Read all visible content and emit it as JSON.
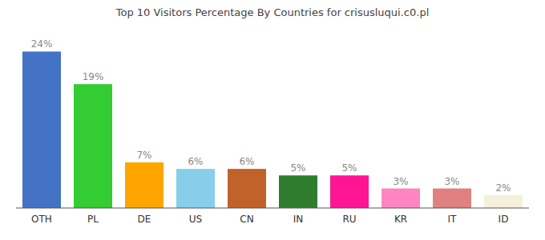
{
  "chart_data": {
    "type": "bar",
    "title": "Top 10 Visitors Percentage By Countries for crisusluqui.c0.pl",
    "categories": [
      "OTH",
      "PL",
      "DE",
      "US",
      "CN",
      "IN",
      "RU",
      "KR",
      "IT",
      "ID"
    ],
    "values": [
      24,
      19,
      7,
      6,
      6,
      5,
      5,
      3,
      3,
      2
    ],
    "value_labels": [
      "24%",
      "19%",
      "7%",
      "6%",
      "6%",
      "5%",
      "5%",
      "3%",
      "3%",
      "2%"
    ],
    "colors": [
      "#4472C4",
      "#33CC33",
      "#FFA500",
      "#87CEEB",
      "#C0622A",
      "#2E7D2E",
      "#FF1493",
      "#FF85C0",
      "#E08080",
      "#F5F0DC"
    ],
    "ylim": [
      0,
      27
    ],
    "data_labels": true,
    "tick_labels": "x",
    "grid": false
  }
}
